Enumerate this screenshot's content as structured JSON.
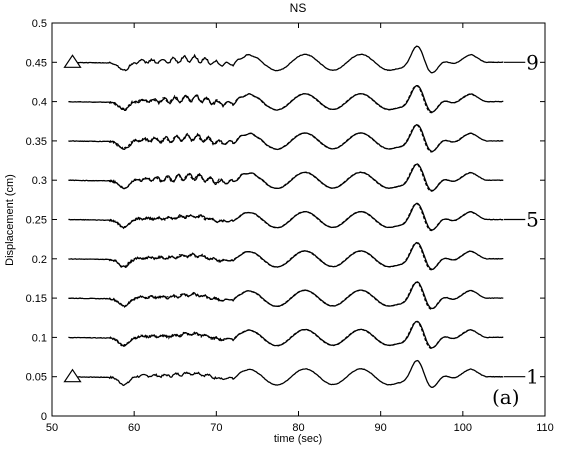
{
  "chart_data": {
    "type": "line",
    "title": "NS",
    "xlabel": "time (sec)",
    "ylabel": "Displacement (cm)",
    "xlim": [
      50,
      110
    ],
    "ylim": [
      0,
      0.5
    ],
    "xticks": [
      "50",
      "60",
      "70",
      "80",
      "90",
      "100",
      "110"
    ],
    "yticks": [
      "0",
      "0.05",
      "0.1",
      "0.15",
      "0.2",
      "0.25",
      "0.3",
      "0.35",
      "0.4",
      "0.45",
      "0.5"
    ],
    "grid": false,
    "panel_label": "(a)",
    "trace_labels": [
      {
        "text": "9",
        "baseline": 0.45
      },
      {
        "text": "5",
        "baseline": 0.25
      },
      {
        "text": "1",
        "baseline": 0.05
      }
    ],
    "markers": [
      {
        "shape": "triangle",
        "baseline": 0.45
      },
      {
        "shape": "triangle",
        "baseline": 0.05
      }
    ],
    "trace_spacing": 0.05,
    "trace_count": 9,
    "trace_start_time": 52,
    "trace_end_time": 105,
    "series": [
      {
        "baseline": 0.05,
        "observed": "solid",
        "synthetic": "dashed"
      },
      {
        "baseline": 0.1,
        "observed": "solid",
        "synthetic": "dashed"
      },
      {
        "baseline": 0.15,
        "observed": "solid",
        "synthetic": "dashed"
      },
      {
        "baseline": 0.2,
        "observed": "solid",
        "synthetic": "dashed"
      },
      {
        "baseline": 0.25,
        "observed": "solid",
        "synthetic": "dashed"
      },
      {
        "baseline": 0.3,
        "observed": "solid",
        "synthetic": "dashed"
      },
      {
        "baseline": 0.35,
        "observed": "solid",
        "synthetic": "dashed"
      },
      {
        "baseline": 0.4,
        "observed": "solid",
        "synthetic": "dashed"
      },
      {
        "baseline": 0.45,
        "observed": "solid",
        "synthetic": "dashed"
      }
    ],
    "line_color": "#000000"
  }
}
